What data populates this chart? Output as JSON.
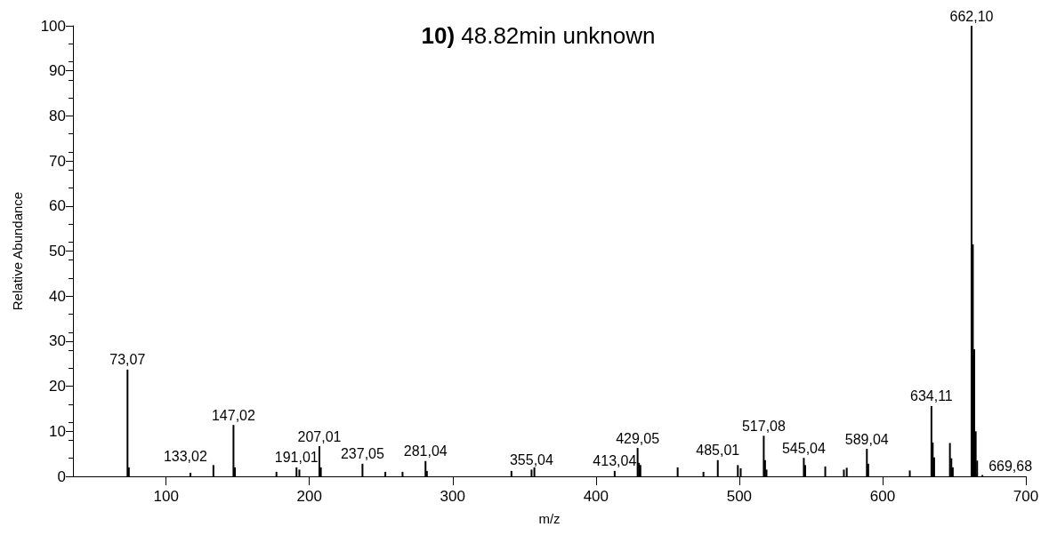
{
  "chart_data": {
    "type": "bar",
    "title": "10) 48.82min unknown",
    "xlabel": "m/z",
    "ylabel": "Relative Abundance",
    "xlim": [
      35,
      700
    ],
    "ylim": [
      0,
      100
    ],
    "xticks": [
      100,
      200,
      300,
      400,
      500,
      600,
      700
    ],
    "yticks": [
      0,
      10,
      20,
      30,
      40,
      50,
      60,
      70,
      80,
      90,
      100
    ],
    "grid": false,
    "color": "#000000",
    "x": [
      73.07,
      74,
      117,
      133.02,
      147.02,
      148,
      177,
      191.01,
      193,
      207.01,
      208,
      237.05,
      253,
      265,
      281.04,
      282,
      341,
      355.04,
      357,
      413.04,
      429.05,
      430,
      431,
      457,
      475,
      485.01,
      499,
      501,
      517.08,
      518,
      519,
      545.04,
      546,
      560,
      573,
      575,
      589.04,
      590,
      619,
      634.11,
      635,
      636,
      647,
      648,
      649,
      662.1,
      663,
      664,
      665,
      666,
      669.68
    ],
    "values": [
      23.7,
      2,
      0.8,
      2.5,
      11.4,
      2,
      1,
      2,
      1.5,
      6.7,
      2,
      2.8,
      1,
      1,
      3.4,
      1.2,
      1.2,
      1.5,
      2,
      1.2,
      6.3,
      3,
      2.5,
      2,
      1,
      3.6,
      2.5,
      1.8,
      9,
      3.6,
      1.5,
      4.1,
      2.5,
      2.2,
      1.5,
      1.9,
      6.1,
      2.8,
      1.3,
      15.6,
      7.5,
      4.2,
      7.4,
      4,
      2,
      100,
      51.5,
      28.2,
      10,
      3.5,
      0.3
    ],
    "annotations": [
      {
        "text": "73,07",
        "x": 73.07,
        "y": 23.7
      },
      {
        "text": "133,02",
        "x": 133.02,
        "y": 2.5
      },
      {
        "text": "147,02",
        "x": 147.02,
        "y": 11.4
      },
      {
        "text": "191,01",
        "x": 191.01,
        "y": 2
      },
      {
        "text": "207,01",
        "x": 207.01,
        "y": 6.7
      },
      {
        "text": "237,05",
        "x": 237.05,
        "y": 2.8
      },
      {
        "text": "281,04",
        "x": 281.04,
        "y": 3.4
      },
      {
        "text": "355,04",
        "x": 355.04,
        "y": 1.5
      },
      {
        "text": "413,04",
        "x": 413.04,
        "y": 1.2
      },
      {
        "text": "429,05",
        "x": 429.05,
        "y": 6.3
      },
      {
        "text": "485,01",
        "x": 485.01,
        "y": 3.6
      },
      {
        "text": "517,08",
        "x": 517.08,
        "y": 9
      },
      {
        "text": "545,04",
        "x": 545.04,
        "y": 4.1
      },
      {
        "text": "589,04",
        "x": 589.04,
        "y": 6.1
      },
      {
        "text": "634,11",
        "x": 634.11,
        "y": 15.6
      },
      {
        "text": "662,10",
        "x": 662.1,
        "y": 100
      },
      {
        "text": "669,68",
        "x": 669.68,
        "y": 0.3
      }
    ]
  }
}
